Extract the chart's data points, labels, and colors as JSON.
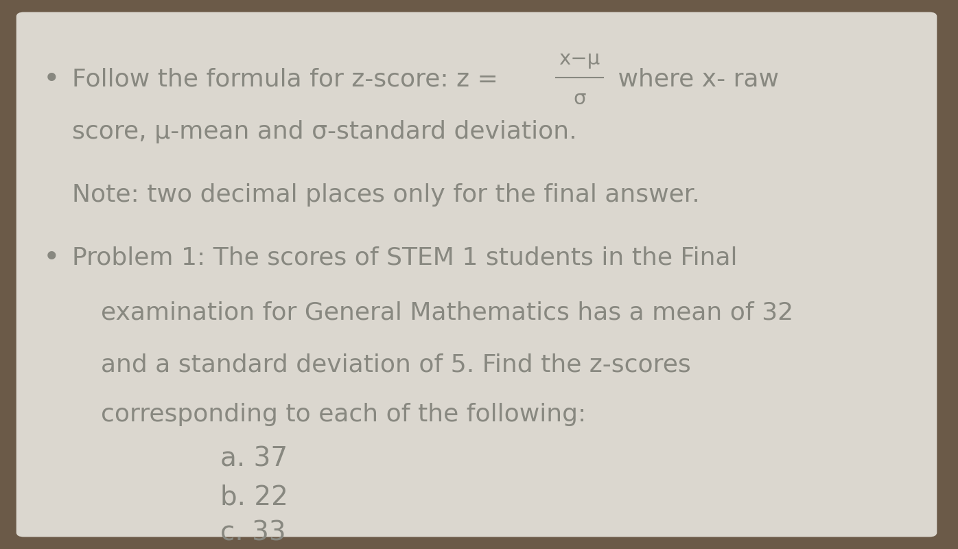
{
  "bg_outer": "#6b5a48",
  "bg_paper": "#dbd7cf",
  "text_color": "#888880",
  "bullet": "•",
  "line1_prefix": "Follow the formula for z-score: z = ",
  "line1_formula_num": "x−μ",
  "line1_formula_den": "σ",
  "line1_suffix": " where x- raw",
  "line2": "score, μ-mean and σ-standard deviation.",
  "line3": "Note: two decimal places only for the final answer.",
  "line4": "Problem 1: The scores of STEM 1 students in the Final",
  "line5": "examination for General Mathematics has a mean of 32",
  "line6": "and a standard deviation of 5. Find the z-scores",
  "line7": "corresponding to each of the following:",
  "item_a": "a. 37",
  "item_b": "b. 22",
  "item_c": "c. 33",
  "font_size_main": 26,
  "font_size_items": 28
}
